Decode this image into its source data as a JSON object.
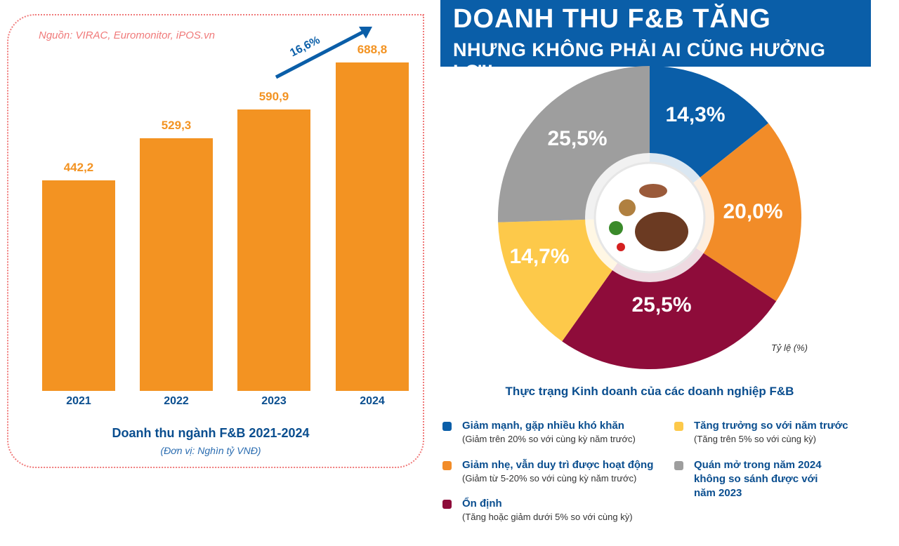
{
  "bar_chart": {
    "source": "Nguồn: VIRAC, Euromonitor, iPOS.vn",
    "growth_label": "16,6%",
    "title": "Doanh thu ngành F&B 2021-2024",
    "subtitle": "(Đơn vị: Nghìn tỷ VNĐ)"
  },
  "banner": {
    "line1": "DOANH THU F&B TĂNG",
    "line2": "NHƯNG KHÔNG PHẢI AI CŨNG HƯỞNG LỢI!"
  },
  "pie": {
    "unit_label": "Tỷ lệ (%)",
    "legend_title": "Thực trạng Kinh doanh của các doanh nghiệp F&B"
  },
  "chart_data": [
    {
      "type": "bar",
      "categories": [
        "2021",
        "2022",
        "2023",
        "2024"
      ],
      "values": [
        442.2,
        529.3,
        590.9,
        688.8
      ],
      "value_labels": [
        "442,2",
        "529,3",
        "590,9",
        "688,8"
      ],
      "title": "Doanh thu ngành F&B 2021-2024",
      "ylabel": "(Đơn vị: Nghìn tỷ VNĐ)",
      "color": "#f39322",
      "annotation": "16,6%"
    },
    {
      "type": "pie",
      "title": "Thực trạng Kinh doanh của các doanh nghiệp F&B",
      "slices": [
        {
          "name": "Giảm mạnh, gặp nhiều khó khăn",
          "desc": "(Giảm trên 20% so với cùng kỳ năm trước)",
          "value": 14.3,
          "label": "14,3%",
          "color": "#0a5ea8"
        },
        {
          "name": "Giảm nhẹ, vẫn duy trì được hoạt động",
          "desc": "(Giảm từ 5-20% so với cùng kỳ năm trước)",
          "value": 20.0,
          "label": "20,0%",
          "color": "#f28c28"
        },
        {
          "name": "Ổn định",
          "desc": "(Tăng hoặc giảm dưới 5% so với cùng kỳ)",
          "value": 25.5,
          "label": "25,5%",
          "color": "#8e0c3a"
        },
        {
          "name": "Tăng trưởng so với năm trước",
          "desc": "(Tăng trên 5% so với cùng kỳ)",
          "value": 14.7,
          "label": "14,7%",
          "color": "#fdc94a"
        },
        {
          "name": "Quán mở trong năm 2024 không so sánh được với năm 2023",
          "desc": "",
          "value": 25.5,
          "label": "25,5%",
          "color": "#9e9e9e"
        }
      ],
      "legend_placement": "bottom"
    }
  ]
}
